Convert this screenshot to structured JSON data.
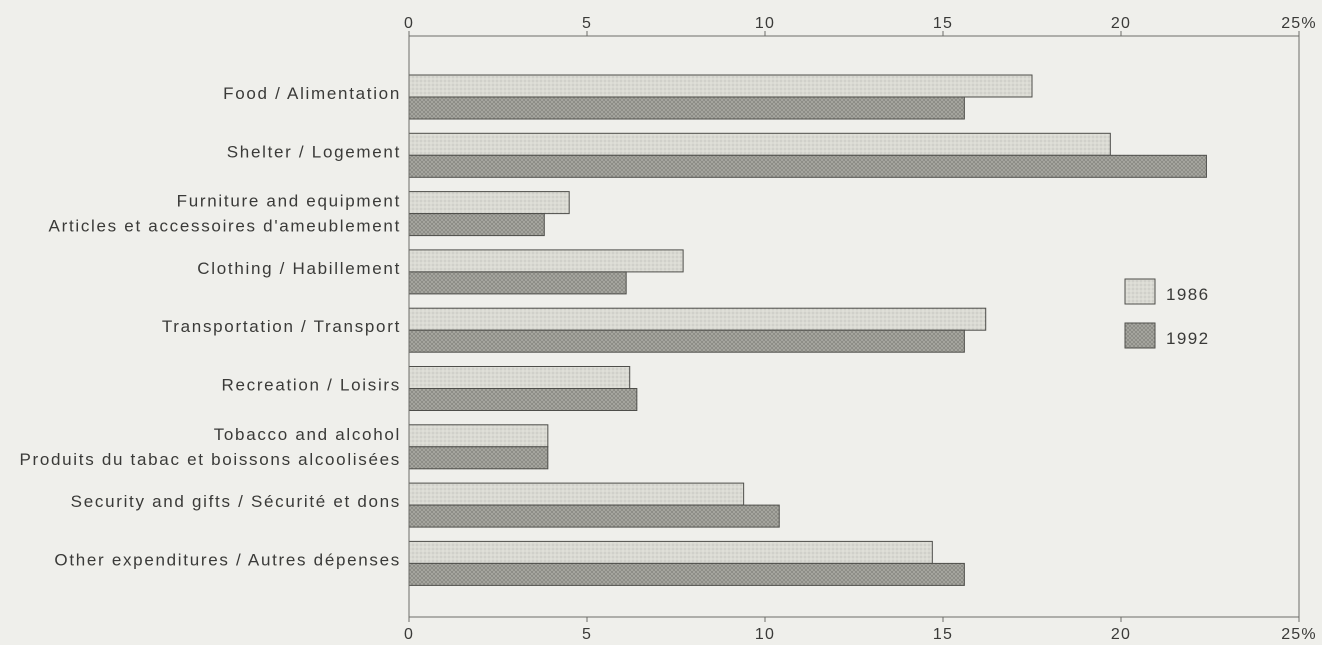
{
  "chart_data": {
    "type": "bar",
    "orientation": "horizontal",
    "categories": [
      [
        "Food / Alimentation"
      ],
      [
        "Shelter / Logement"
      ],
      [
        "Furniture and equipment",
        "Articles et accessoires d'ameublement"
      ],
      [
        "Clothing / Habillement"
      ],
      [
        "Transportation / Transport"
      ],
      [
        "Recreation / Loisirs"
      ],
      [
        "Tobacco and alcohol",
        "Produits du tabac et boissons alcoolisées"
      ],
      [
        "Security and gifts / Sécurité et dons"
      ],
      [
        "Other expenditures / Autres dépenses"
      ]
    ],
    "series": [
      {
        "name": "1986",
        "color": "#dadad3",
        "values": [
          17.5,
          19.7,
          4.5,
          7.7,
          16.2,
          6.2,
          3.9,
          9.4,
          14.7
        ]
      },
      {
        "name": "1992",
        "color": "#a9a9a2",
        "values": [
          15.6,
          22.4,
          3.8,
          6.1,
          15.6,
          6.4,
          3.9,
          10.4,
          15.6
        ]
      }
    ],
    "xlim": [
      0,
      25
    ],
    "x_ticks": [
      0,
      5,
      10,
      15,
      20,
      25
    ],
    "x_tick_labels": [
      "0",
      "5",
      "10",
      "15",
      "20",
      "25%"
    ],
    "grid": false,
    "legend_position": "right"
  }
}
